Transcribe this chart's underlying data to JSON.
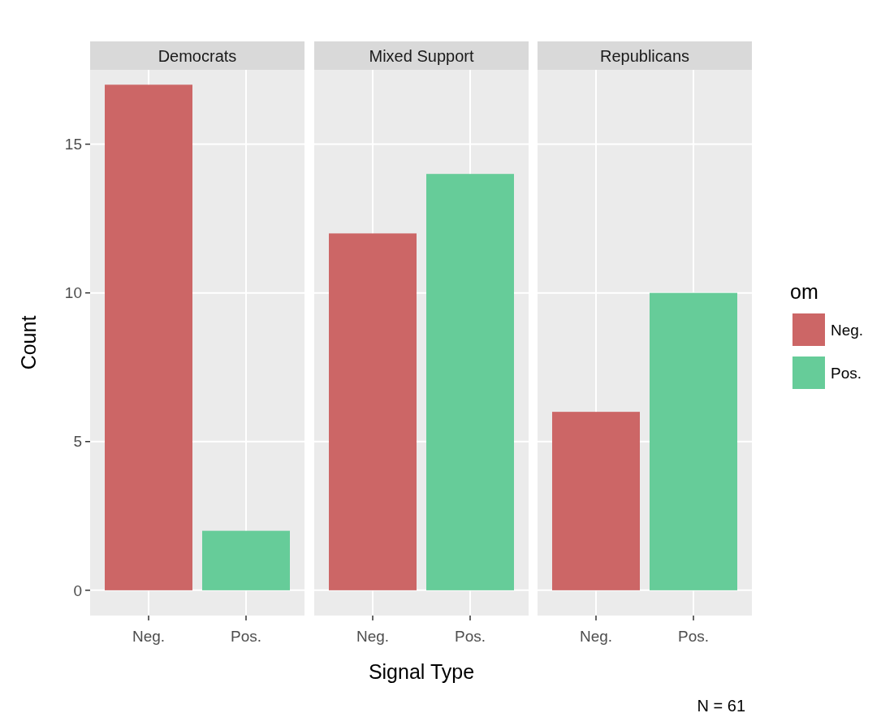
{
  "chart_data": [
    {
      "type": "bar",
      "title": "Democrats",
      "ylabel": "Count",
      "categories": [
        "Neg.",
        "Pos."
      ],
      "series": [
        {
          "color": "#cc6666",
          "values": [
            17,
            null
          ]
        },
        {
          "color": "#66cc99",
          "values": [
            null,
            2
          ]
        }
      ],
      "ylim": [
        -0.85,
        17.5
      ],
      "yticks": [
        0,
        5,
        10,
        15
      ],
      "grid": true,
      "legend": false
    },
    {
      "type": "bar",
      "title": "Mixed Support",
      "xlabel": "Signal Type",
      "categories": [
        "Neg.",
        "Pos."
      ],
      "series": [
        {
          "color": "#cc6666",
          "values": [
            12,
            null
          ]
        },
        {
          "color": "#66cc99",
          "values": [
            null,
            14
          ]
        }
      ],
      "ylim": [
        -0.85,
        17.5
      ],
      "yticks": [
        0,
        5,
        10,
        15
      ],
      "grid": true,
      "legend": false,
      "tick_labels": "x"
    },
    {
      "type": "bar",
      "title": "Republicans",
      "categories": [
        "Neg.",
        "Pos."
      ],
      "series": [
        {
          "name": "Neg.",
          "color": "#cc6666",
          "values": [
            6,
            null
          ]
        },
        {
          "name": "Pos.",
          "color": "#66cc99",
          "values": [
            null,
            10
          ]
        }
      ],
      "ylim": [
        -0.85,
        17.5
      ],
      "yticks": [
        0,
        5,
        10,
        15
      ],
      "grid": true,
      "legend": "right",
      "legend_title": "om",
      "tick_labels": "x",
      "annotations": [
        "N = 61"
      ]
    }
  ]
}
